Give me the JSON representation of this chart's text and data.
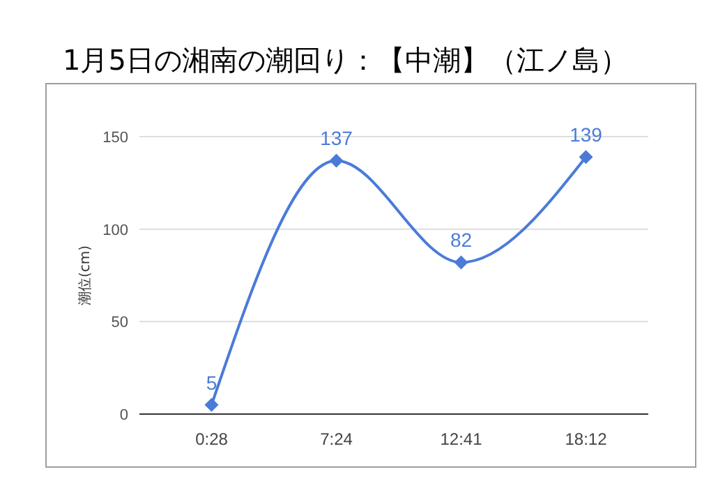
{
  "chart_data": {
    "type": "line",
    "title": "1月5日の湘南の潮回り：【中潮】（江ノ島）",
    "ylabel": "潮位(cm)",
    "categories": [
      "0:28",
      "7:24",
      "12:41",
      "18:12"
    ],
    "series": [
      {
        "color": "#4a7bd8",
        "values": [
          5,
          137,
          82,
          139
        ]
      }
    ],
    "ylim": [
      0,
      150
    ],
    "yticks": [
      0,
      50,
      100,
      150
    ],
    "grid": "y",
    "marker": "diamond",
    "line_style": "solid",
    "data_labels": true
  }
}
